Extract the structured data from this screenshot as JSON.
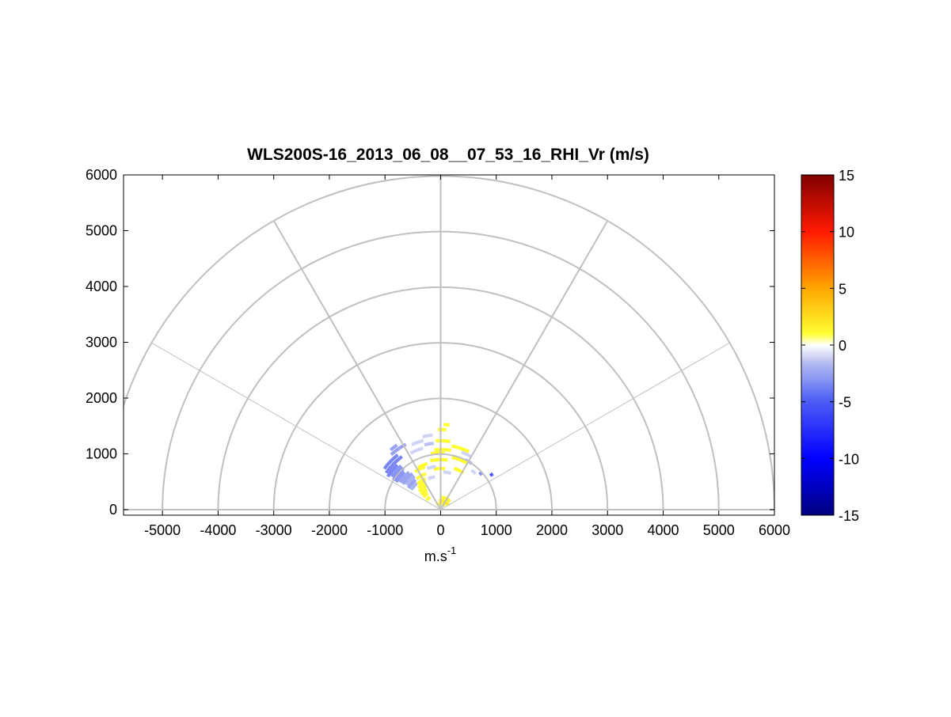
{
  "chart_data": {
    "type": "polar-rhi-heatmap",
    "title": "WLS200S-16_2013_06_08__07_53_16_RHI_Vr (m/s)",
    "xlabel_main": "m.s",
    "xlabel_sup": "-1",
    "ylabel": "",
    "xlim": [
      -5700,
      6000
    ],
    "ylim": [
      -100,
      6000
    ],
    "x_ticks": [
      -5000,
      -4000,
      -3000,
      -2000,
      -1000,
      0,
      1000,
      2000,
      3000,
      4000,
      5000,
      6000
    ],
    "x_tick_labels": [
      "-5000",
      "-4000",
      "-3000",
      "-2000",
      "-1000",
      "0",
      "1000",
      "2000",
      "3000",
      "4000",
      "5000",
      "6000"
    ],
    "y_ticks": [
      0,
      1000,
      2000,
      3000,
      4000,
      5000,
      6000
    ],
    "y_tick_labels": [
      "0",
      "1000",
      "2000",
      "3000",
      "4000",
      "5000",
      "6000"
    ],
    "polar_rings": [
      1000,
      2000,
      3000,
      4000,
      5000,
      6000
    ],
    "polar_spokes_deg": [
      0,
      30,
      60,
      90,
      120,
      150,
      180
    ],
    "scan_sector_deg": [
      30,
      150
    ],
    "colorbar": {
      "limits": [
        -15,
        15
      ],
      "ticks": [
        -15,
        -10,
        -5,
        0,
        5,
        10,
        15
      ],
      "tick_labels": [
        "-15",
        "-10",
        "-5",
        "0",
        "5",
        "10",
        "15"
      ],
      "stops": [
        {
          "value": -15,
          "color": "#000080"
        },
        {
          "value": -10,
          "color": "#0000ff"
        },
        {
          "value": -5,
          "color": "#4a5cf5"
        },
        {
          "value": -1.5,
          "color": "#b8bff0"
        },
        {
          "value": 0,
          "color": "#ffffff"
        },
        {
          "value": 1,
          "color": "#ffff33"
        },
        {
          "value": 5,
          "color": "#ffa500"
        },
        {
          "value": 10,
          "color": "#ff1a00"
        },
        {
          "value": 15,
          "color": "#800000"
        }
      ]
    },
    "gates": [
      {
        "r": 1400,
        "a1": 124,
        "a2": 130,
        "v": -2.5
      },
      {
        "r": 1330,
        "a1": 118,
        "a2": 132,
        "v": -2.5
      },
      {
        "r": 1250,
        "a1": 128,
        "a2": 144,
        "v": -3.5
      },
      {
        "r": 1180,
        "a1": 126,
        "a2": 146,
        "v": -3.5
      },
      {
        "r": 1120,
        "a1": 134,
        "a2": 148,
        "v": -3.5
      },
      {
        "r": 1060,
        "a1": 132,
        "a2": 146,
        "v": -3.0
      },
      {
        "r": 1000,
        "a1": 132,
        "a2": 148,
        "v": -3.5
      },
      {
        "r": 940,
        "a1": 134,
        "a2": 148,
        "v": -3.0
      },
      {
        "r": 880,
        "a1": 130,
        "a2": 146,
        "v": -2.5
      },
      {
        "r": 820,
        "a1": 128,
        "a2": 146,
        "v": -2.5
      },
      {
        "r": 760,
        "a1": 128,
        "a2": 144,
        "v": -2.0
      },
      {
        "r": 700,
        "a1": 130,
        "a2": 146,
        "v": -2.5
      },
      {
        "r": 640,
        "a1": 132,
        "a2": 146,
        "v": -2.0
      },
      {
        "r": 1350,
        "a1": 96,
        "a2": 104,
        "v": -1.0
      },
      {
        "r": 1280,
        "a1": 104,
        "a2": 114,
        "v": -1.0
      },
      {
        "r": 1200,
        "a1": 96,
        "a2": 104,
        "v": -1.5
      },
      {
        "r": 1150,
        "a1": 106,
        "a2": 118,
        "v": -1.0
      },
      {
        "r": 1100,
        "a1": 60,
        "a2": 70,
        "v": -1.0
      },
      {
        "r": 1000,
        "a1": 56,
        "a2": 64,
        "v": -1.5
      },
      {
        "r": 1110,
        "a1": 33,
        "a2": 36,
        "v": -5.0
      },
      {
        "r": 970,
        "a1": 40,
        "a2": 44,
        "v": -3.0
      },
      {
        "r": 900,
        "a1": 46,
        "a2": 52,
        "v": -1.0
      },
      {
        "r": 1530,
        "a1": 84,
        "a2": 88,
        "v": 1.2
      },
      {
        "r": 1440,
        "a1": 86,
        "a2": 92,
        "v": 1.2
      },
      {
        "r": 1240,
        "a1": 82,
        "a2": 94,
        "v": 1.2
      },
      {
        "r": 1160,
        "a1": 64,
        "a2": 80,
        "v": 1.2
      },
      {
        "r": 1080,
        "a1": 80,
        "a2": 96,
        "v": 1.2
      },
      {
        "r": 1020,
        "a1": 86,
        "a2": 100,
        "v": 1.2
      },
      {
        "r": 960,
        "a1": 60,
        "a2": 78,
        "v": 1.2
      },
      {
        "r": 900,
        "a1": 82,
        "a2": 102,
        "v": 1.2
      },
      {
        "r": 860,
        "a1": 106,
        "a2": 118,
        "v": 1.2
      },
      {
        "r": 820,
        "a1": 110,
        "a2": 124,
        "v": 1.2
      },
      {
        "r": 780,
        "a1": 58,
        "a2": 72,
        "v": 1.2
      },
      {
        "r": 740,
        "a1": 84,
        "a2": 100,
        "v": 1.2
      },
      {
        "r": 700,
        "a1": 112,
        "a2": 128,
        "v": 1.2
      },
      {
        "r": 620,
        "a1": 116,
        "a2": 132,
        "v": 1.2
      },
      {
        "r": 560,
        "a1": 118,
        "a2": 136,
        "v": 1.2
      },
      {
        "r": 500,
        "a1": 120,
        "a2": 140,
        "v": 1.2
      },
      {
        "r": 440,
        "a1": 124,
        "a2": 142,
        "v": 1.2
      },
      {
        "r": 380,
        "a1": 128,
        "a2": 144,
        "v": 1.2
      },
      {
        "r": 300,
        "a1": 130,
        "a2": 146,
        "v": 1.2
      },
      {
        "r": 220,
        "a1": 40,
        "a2": 90,
        "v": 1.5
      },
      {
        "r": 160,
        "a1": 30,
        "a2": 100,
        "v": 2.0
      },
      {
        "r": 110,
        "a1": 40,
        "a2": 130,
        "v": 1.5
      },
      {
        "r": 780,
        "a1": 96,
        "a2": 108,
        "v": -1.0
      },
      {
        "r": 680,
        "a1": 74,
        "a2": 86,
        "v": -1.0
      },
      {
        "r": 600,
        "a1": 100,
        "a2": 112,
        "v": -1.0
      }
    ]
  }
}
